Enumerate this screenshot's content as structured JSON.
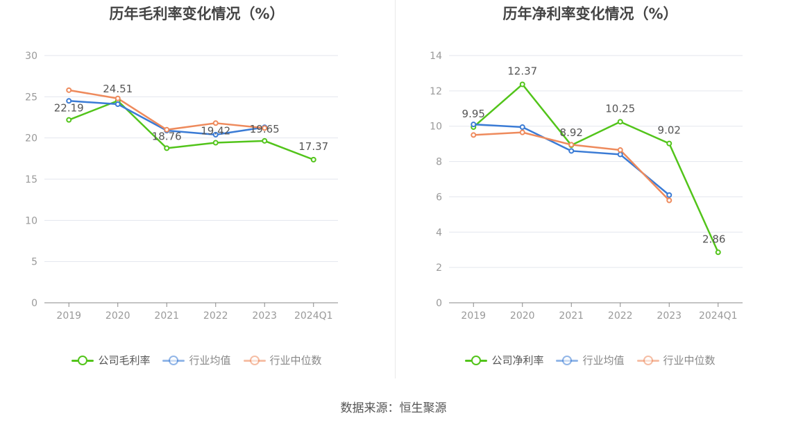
{
  "source_label": "数据来源：恒生聚源",
  "chart_data": [
    {
      "type": "line",
      "title": "历年毛利率变化情况（%）",
      "x": [
        "2019",
        "2020",
        "2021",
        "2022",
        "2023",
        "2024Q1"
      ],
      "ylim": [
        0,
        30
      ],
      "yticks": [
        0,
        5,
        10,
        15,
        20,
        25,
        30
      ],
      "grid": true,
      "legend_position": "bottom",
      "series": [
        {
          "name": "公司毛利率",
          "color": "#52c41a",
          "values": [
            22.19,
            24.51,
            18.76,
            19.42,
            19.65,
            17.37
          ],
          "labels": [
            "22.19",
            "24.51",
            "18.76",
            "19.42",
            "19.65",
            "17.37"
          ]
        },
        {
          "name": "行业均值",
          "color": "#3a7bd5",
          "values": [
            24.5,
            24.1,
            20.9,
            20.4,
            21.3,
            null
          ]
        },
        {
          "name": "行业中位数",
          "color": "#ee8a5c",
          "values": [
            25.8,
            24.8,
            21.0,
            21.8,
            21.2,
            null
          ]
        }
      ]
    },
    {
      "type": "line",
      "title": "历年净利率变化情况（%）",
      "x": [
        "2019",
        "2020",
        "2021",
        "2022",
        "2023",
        "2024Q1"
      ],
      "ylim": [
        0,
        14
      ],
      "yticks": [
        0,
        2,
        4,
        6,
        8,
        10,
        12,
        14
      ],
      "grid": true,
      "legend_position": "bottom",
      "series": [
        {
          "name": "公司净利率",
          "color": "#52c41a",
          "values": [
            9.95,
            12.37,
            8.92,
            10.25,
            9.02,
            2.86
          ],
          "labels": [
            "9.95",
            "12.37",
            "8.92",
            "10.25",
            "9.02",
            "2.86"
          ]
        },
        {
          "name": "行业均值",
          "color": "#3a7bd5",
          "values": [
            10.1,
            9.95,
            8.6,
            8.4,
            6.1,
            null
          ]
        },
        {
          "name": "行业中位数",
          "color": "#ee8a5c",
          "values": [
            9.5,
            9.65,
            8.95,
            8.65,
            5.8,
            null
          ]
        }
      ]
    }
  ]
}
